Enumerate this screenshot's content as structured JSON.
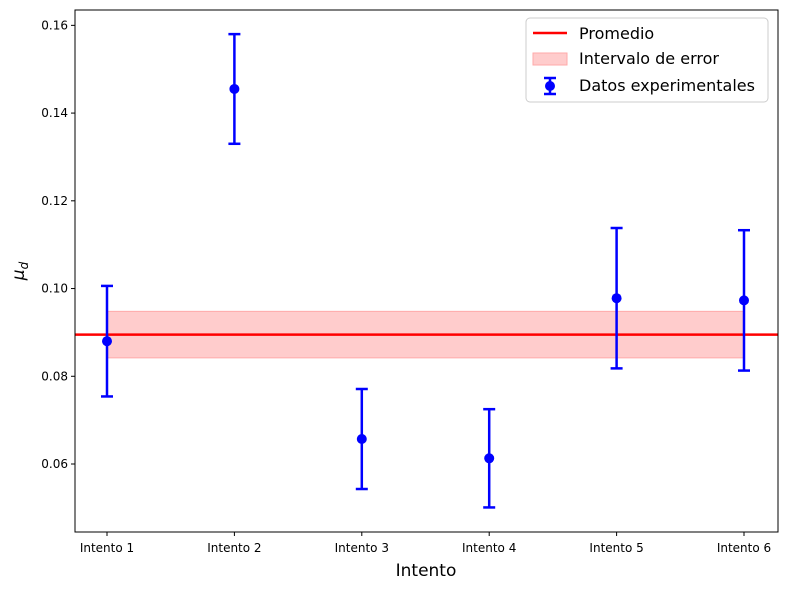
{
  "chart_data": {
    "type": "scatter",
    "categories": [
      "Intento 1",
      "Intento 2",
      "Intento 3",
      "Intento 4",
      "Intento 5",
      "Intento 6"
    ],
    "series": [
      {
        "name": "Datos experimentales",
        "values": [
          0.088,
          0.1455,
          0.0657,
          0.0613,
          0.0978,
          0.0973
        ],
        "errors": [
          0.0126,
          0.0125,
          0.0114,
          0.0112,
          0.016,
          0.016
        ],
        "color": "#0000ff"
      }
    ],
    "mean": {
      "name": "Promedio",
      "value": 0.0895,
      "color": "#ff0000"
    },
    "error_band": {
      "name": "Intervalo de error",
      "low": 0.0842,
      "high": 0.0948,
      "color": "#ffcccc"
    },
    "xlabel": "Intento",
    "ylabel": "μ",
    "ylabel_sub": "d",
    "ylim": [
      0.0445,
      0.1635
    ],
    "yticks": [
      0.06,
      0.08,
      0.1,
      0.12,
      0.14,
      0.16
    ],
    "ytick_labels": [
      "0.06",
      "0.08",
      "0.10",
      "0.12",
      "0.14",
      "0.16"
    ],
    "grid": false,
    "legend_position": "top-right"
  }
}
